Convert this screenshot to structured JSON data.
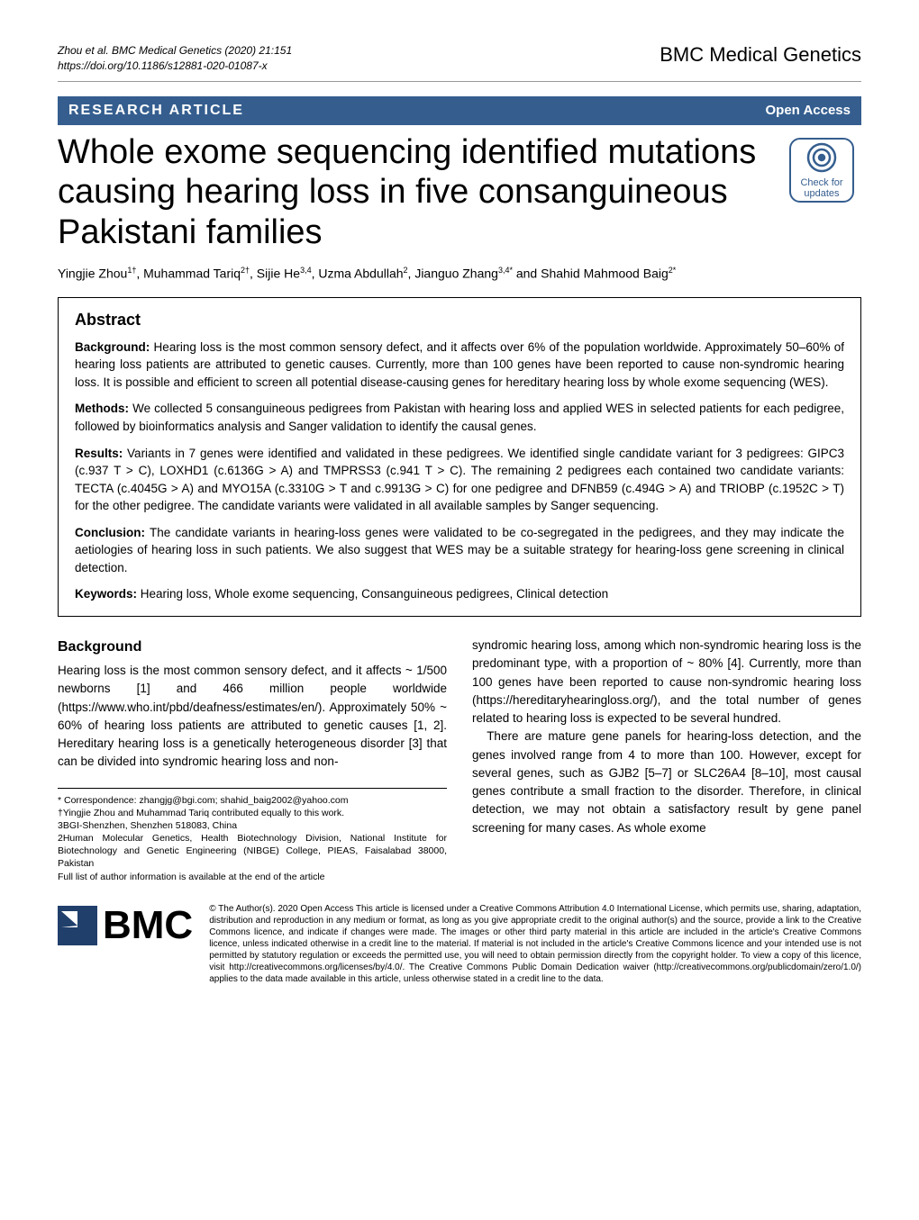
{
  "header": {
    "citation_line1": "Zhou et al. BMC Medical Genetics        (2020) 21:151",
    "citation_line2": "https://doi.org/10.1186/s12881-020-01087-x",
    "journal": "BMC Medical Genetics"
  },
  "labels": {
    "article_type": "RESEARCH ARTICLE",
    "open_access": "Open Access"
  },
  "title": "Whole exome sequencing identified mutations causing hearing loss in five consanguineous Pakistani families",
  "badge": {
    "line1": "Check for",
    "line2": "updates"
  },
  "authors_html": "Yingjie Zhou<sup>1†</sup>, Muhammad Tariq<sup>2†</sup>, Sijie He<sup>3,4</sup>, Uzma Abdullah<sup>2</sup>, Jianguo Zhang<sup>3,4*</sup> and Shahid Mahmood Baig<sup>2*</sup>",
  "abstract": {
    "heading": "Abstract",
    "background_label": "Background:",
    "background": " Hearing loss is the most common sensory defect, and it affects over 6% of the population worldwide. Approximately 50–60% of hearing loss patients are attributed to genetic causes. Currently, more than 100 genes have been reported to cause non-syndromic hearing loss. It is possible and efficient to screen all potential disease-causing genes for hereditary hearing loss by whole exome sequencing (WES).",
    "methods_label": "Methods:",
    "methods": " We collected 5 consanguineous pedigrees from Pakistan with hearing loss and applied WES in selected patients for each pedigree, followed by bioinformatics analysis and Sanger validation to identify the causal genes.",
    "results_label": "Results:",
    "results": " Variants in 7 genes were identified and validated in these pedigrees. We identified single candidate variant for 3 pedigrees: GIPC3 (c.937 T > C), LOXHD1 (c.6136G > A) and TMPRSS3 (c.941 T > C). The remaining 2 pedigrees each contained two candidate variants: TECTA (c.4045G > A) and MYO15A (c.3310G > T and c.9913G > C) for one pedigree and DFNB59 (c.494G > A) and TRIOBP (c.1952C > T) for the other pedigree. The candidate variants were validated in all available samples by Sanger sequencing.",
    "conclusion_label": "Conclusion:",
    "conclusion": " The candidate variants in hearing-loss genes were validated to be co-segregated in the pedigrees, and they may indicate the aetiologies of hearing loss in such patients. We also suggest that WES may be a suitable strategy for hearing-loss gene screening in clinical detection.",
    "keywords_label": "Keywords:",
    "keywords": " Hearing loss, Whole exome sequencing, Consanguineous pedigrees, Clinical detection"
  },
  "body": {
    "section_heading": "Background",
    "col1_p1": "Hearing loss is the most common sensory defect, and it affects ~ 1/500 newborns [1] and 466 million people worldwide (https://www.who.int/pbd/deafness/estimates/en/). Approximately 50% ~ 60% of hearing loss patients are attributed to genetic causes [1, 2]. Hereditary hearing loss is a genetically heterogeneous disorder [3] that can be divided into syndromic hearing loss and non-",
    "col2_p1": "syndromic hearing loss, among which non-syndromic hearing loss is the predominant type, with a proportion of ~ 80% [4]. Currently, more than 100 genes have been reported to cause non-syndromic hearing loss (https://hereditaryhearingloss.org/), and the total number of genes related to hearing loss is expected to be several hundred.",
    "col2_p2": "There are mature gene panels for hearing-loss detection, and the genes involved range from 4 to more than 100. However, except for several genes, such as GJB2 [5–7] or SLC26A4 [8–10], most causal genes contribute a small fraction to the disorder. Therefore, in clinical detection, we may not obtain a satisfactory result by gene panel screening for many cases. As whole exome"
  },
  "footnotes": {
    "l1": "* Correspondence: zhangjg@bgi.com; shahid_baig2002@yahoo.com",
    "l2": "†Yingjie Zhou and Muhammad Tariq contributed equally to this work.",
    "l3": "3BGI-Shenzhen, Shenzhen 518083, China",
    "l4": "2Human Molecular Genetics, Health Biotechnology Division, National Institute for Biotechnology and Genetic Engineering (NIBGE) College, PIEAS, Faisalabad 38000, Pakistan",
    "l5": "Full list of author information is available at the end of the article"
  },
  "footer": {
    "bmc": "BMC",
    "license": "© The Author(s). 2020 Open Access This article is licensed under a Creative Commons Attribution 4.0 International License, which permits use, sharing, adaptation, distribution and reproduction in any medium or format, as long as you give appropriate credit to the original author(s) and the source, provide a link to the Creative Commons licence, and indicate if changes were made. The images or other third party material in this article are included in the article's Creative Commons licence, unless indicated otherwise in a credit line to the material. If material is not included in the article's Creative Commons licence and your intended use is not permitted by statutory regulation or exceeds the permitted use, you will need to obtain permission directly from the copyright holder. To view a copy of this licence, visit http://creativecommons.org/licenses/by/4.0/. The Creative Commons Public Domain Dedication waiver (http://creativecommons.org/publicdomain/zero/1.0/) applies to the data made available in this article, unless otherwise stated in a credit line to the data."
  },
  "colors": {
    "header_bar": "#355e8f",
    "link": "#0066cc",
    "text": "#000000",
    "background": "#ffffff"
  },
  "typography": {
    "title_size_pt": 28,
    "journal_size_pt": 16,
    "body_size_pt": 10,
    "footnote_size_pt": 8
  }
}
